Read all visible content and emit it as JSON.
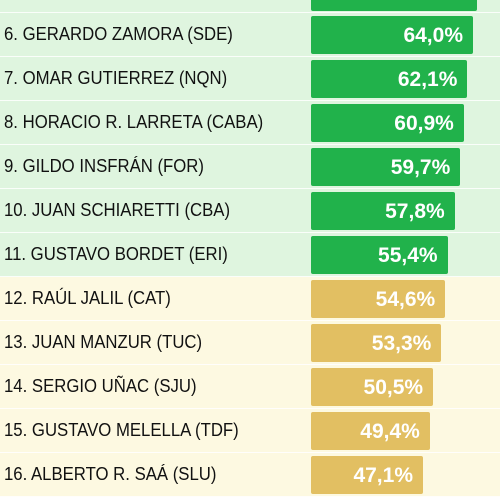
{
  "chart_data": {
    "type": "bar",
    "orientation": "horizontal",
    "categories": [
      "6. GERARDO ZAMORA (SDE)",
      "7. OMAR GUTIERREZ (NQN)",
      "8. HORACIO R. LARRETA (CABA)",
      "9. GILDO INSFRÁN (FOR)",
      "10. JUAN SCHIARETTI (CBA)",
      "11. GUSTAVO BORDET (ERI)",
      "12. RAÚL JALIL (CAT)",
      "13. JUAN MANZUR (TUC)",
      "14. SERGIO UÑAC (SJU)",
      "15. GUSTAVO MELELLA (TDF)",
      "16. ALBERTO R. SAÁ (SLU)"
    ],
    "values": [
      64.0,
      62.1,
      60.9,
      59.7,
      57.8,
      55.4,
      54.6,
      53.3,
      50.5,
      49.4,
      47.1
    ],
    "value_labels": [
      "64,0%",
      "62,1%",
      "60,9%",
      "59,7%",
      "57,8%",
      "55,4%",
      "54,6%",
      "53,3%",
      "50,5%",
      "49,4%",
      "47,1%"
    ],
    "groups": [
      "green",
      "green",
      "green",
      "green",
      "green",
      "green",
      "gold",
      "gold",
      "gold",
      "gold",
      "gold"
    ],
    "colors": {
      "green_bar": "#21b24b",
      "green_row": "#dff5df",
      "gold_bar": "#e2bf62",
      "gold_row": "#fdf9e1",
      "value_text": "#ffffff",
      "label_text": "#111111"
    },
    "title": "",
    "xlabel": "",
    "ylabel": ""
  }
}
